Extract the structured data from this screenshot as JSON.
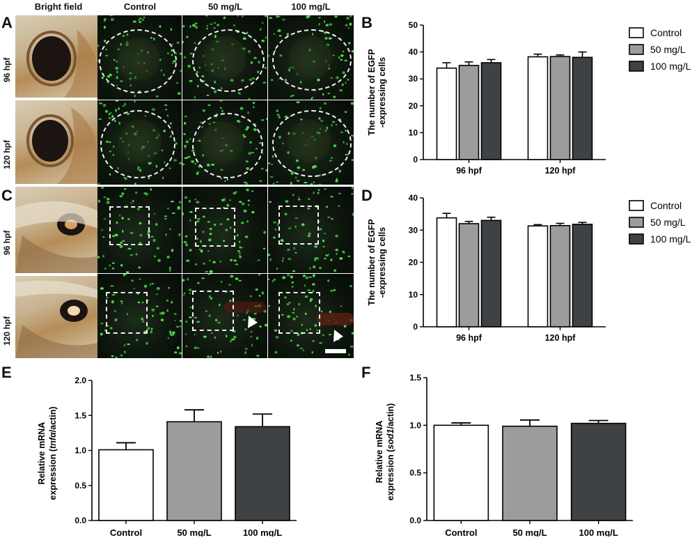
{
  "panels": {
    "A": "A",
    "B": "B",
    "C": "C",
    "D": "D",
    "E": "E",
    "F": "F"
  },
  "column_headers": [
    "Bright field",
    "Control",
    "50 mg/L",
    "100 mg/L"
  ],
  "row_labels": {
    "a_top": "96 hpf",
    "a_bottom": "120 hpf",
    "c_top": "96 hpf",
    "c_bottom": "120 hpf"
  },
  "colors": {
    "control": "#ffffff",
    "mid": "#9a9c9e",
    "high": "#3f4244",
    "cells": "#4fe84a",
    "arrow": "#ffffff"
  },
  "chart_data": [
    {
      "panel": "B",
      "type": "bar",
      "categories": [
        "96 hpf",
        "120 hpf"
      ],
      "series": [
        {
          "name": "Control",
          "values": [
            34,
            38.2
          ],
          "errors": [
            2,
            1
          ]
        },
        {
          "name": "50 mg/L",
          "values": [
            35,
            38.3
          ],
          "errors": [
            1.3,
            0.6
          ]
        },
        {
          "name": "100 mg/L",
          "values": [
            36,
            38
          ],
          "errors": [
            1.2,
            2
          ]
        }
      ],
      "ylabel": [
        "The number of EGFP",
        "-expressing cells"
      ],
      "ylim": [
        0,
        50
      ],
      "yticks": [
        "0",
        "10",
        "20",
        "30",
        "40",
        "50"
      ],
      "legend": "top-right"
    },
    {
      "panel": "D",
      "type": "bar",
      "categories": [
        "96 hpf",
        "120 hpf"
      ],
      "series": [
        {
          "name": "Control",
          "values": [
            33.8,
            31.3
          ],
          "errors": [
            1.4,
            0.4
          ]
        },
        {
          "name": "50 mg/L",
          "values": [
            32,
            31.4
          ],
          "errors": [
            0.7,
            0.7
          ]
        },
        {
          "name": "100 mg/L",
          "values": [
            33,
            31.8
          ],
          "errors": [
            1,
            0.6
          ]
        }
      ],
      "ylabel": [
        "The number of EGFP",
        "-expressing cells"
      ],
      "ylim": [
        0,
        40
      ],
      "yticks": [
        "0",
        "10",
        "20",
        "30",
        "40"
      ],
      "legend": "top-right"
    },
    {
      "panel": "E",
      "type": "bar",
      "categories": [
        "Control",
        "50 mg/L",
        "100 mg/L"
      ],
      "values": [
        1.01,
        1.41,
        1.34
      ],
      "errors": [
        0.1,
        0.17,
        0.18
      ],
      "ylabel": [
        "Relative mRNA",
        "expression (",
        "tnfα",
        "/actin)"
      ],
      "ylim": [
        0,
        2
      ],
      "yticks": [
        "0.0",
        "0.5",
        "1.0",
        "1.5",
        "2.0"
      ]
    },
    {
      "panel": "F",
      "type": "bar",
      "categories": [
        "Control",
        "50 mg/L",
        "100 mg/L"
      ],
      "values": [
        1.0,
        0.99,
        1.02
      ],
      "errors": [
        0.025,
        0.065,
        0.03
      ],
      "ylabel": [
        "Relative mRNA",
        "expression (",
        "sod1",
        "/actin)"
      ],
      "ylim": [
        0,
        1.5
      ],
      "yticks": [
        "0.0",
        "0.5",
        "1.0",
        "1.5"
      ]
    }
  ]
}
